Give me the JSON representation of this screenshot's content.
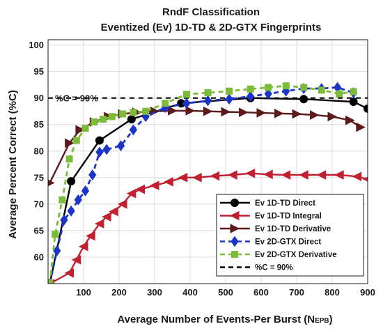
{
  "chart_data": {
    "type": "line",
    "title": "RndF Classification",
    "subtitle": "Eventized (Ev) 1D-TD & 2D-GTX Fingerprints",
    "xlabel": "Average Number of Events-Per Burst (N",
    "xlabel_sub": "EPB",
    "xlabel_close": ")",
    "ylabel": "Average Percent Correct (%C)",
    "xlim": [
      0,
      900
    ],
    "ylim": [
      55,
      101
    ],
    "xticks": [
      100,
      200,
      300,
      400,
      500,
      600,
      700,
      800,
      900
    ],
    "yticks": [
      60,
      65,
      70,
      75,
      80,
      85,
      90,
      95,
      100
    ],
    "grid": true,
    "legend_position": "bottom-right",
    "annotation": "%C = 90%",
    "reference_line": {
      "name": "%C = 90%",
      "y": 90,
      "color": "#000000",
      "style": "dashed"
    },
    "series": [
      {
        "name": "Ev 1D-TD Direct",
        "color": "#000000",
        "marker": "circle",
        "line": "solid",
        "x": [
          5,
          65,
          145,
          235,
          375,
          570,
          720,
          860,
          900
        ],
        "y": [
          55,
          74.3,
          82,
          86,
          89,
          90,
          89.8,
          89.3,
          88
        ]
      },
      {
        "name": "Ev 1D-TD Integral",
        "color": "#c02030",
        "marker": "triangle-left",
        "line": "solid",
        "x": [
          5,
          60,
          80,
          100,
          120,
          145,
          165,
          185,
          210,
          235,
          260,
          300,
          340,
          380,
          420,
          470,
          520,
          570,
          620,
          670,
          720,
          770,
          820,
          870,
          900
        ],
        "y": [
          55,
          57,
          59.5,
          62,
          64,
          66.3,
          67.6,
          68.6,
          70,
          72,
          72.8,
          73.5,
          74.2,
          75,
          75,
          75.3,
          75.5,
          75.8,
          75.6,
          75.5,
          75.5,
          75.5,
          75.5,
          75.2,
          74.7
        ]
      },
      {
        "name": "Ev 1D-TD Derivative",
        "color": "#5c1a1a",
        "marker": "triangle-right",
        "line": "solid",
        "x": [
          5,
          60,
          90,
          130,
          170,
          210,
          250,
          300,
          350,
          400,
          450,
          500,
          550,
          600,
          650,
          700,
          750,
          800,
          850,
          880
        ],
        "y": [
          74,
          81.5,
          84,
          85.5,
          86.5,
          87,
          87.3,
          87.5,
          87.6,
          87.6,
          87.5,
          87.4,
          87.3,
          87.2,
          87.1,
          87,
          86.8,
          86.5,
          85.8,
          84.5
        ]
      },
      {
        "name": "Ev 2D-GTX Direct",
        "color": "#1a35c8",
        "marker": "diamond",
        "line": "dashed",
        "x": [
          5,
          25,
          45,
          65,
          85,
          105,
          125,
          145,
          165,
          205,
          240,
          275,
          330,
          390,
          450,
          510,
          570,
          620,
          670,
          720,
          770,
          815,
          860
        ],
        "y": [
          55,
          61.2,
          67,
          68.7,
          70.8,
          72.5,
          75.5,
          79.8,
          80.3,
          81,
          84,
          86.5,
          88.2,
          89,
          89.5,
          89.8,
          90.3,
          90.8,
          91.3,
          91.8,
          91.8,
          92,
          91
        ]
      },
      {
        "name": "Ev 2D-GTX Derivative",
        "color": "#7dbb3b",
        "marker": "square",
        "line": "dashed",
        "x": [
          5,
          20,
          40,
          60,
          80,
          105,
          130,
          155,
          180,
          210,
          240,
          275,
          330,
          390,
          450,
          510,
          570,
          620,
          670,
          720,
          770,
          820,
          860
        ],
        "y": [
          55,
          64.3,
          70.8,
          78.5,
          82,
          84.3,
          85.5,
          86,
          86.5,
          87,
          87.3,
          87.5,
          89,
          90.7,
          91,
          91.3,
          91.7,
          92,
          92.3,
          92,
          91.5,
          90.8,
          91.2
        ]
      }
    ]
  }
}
